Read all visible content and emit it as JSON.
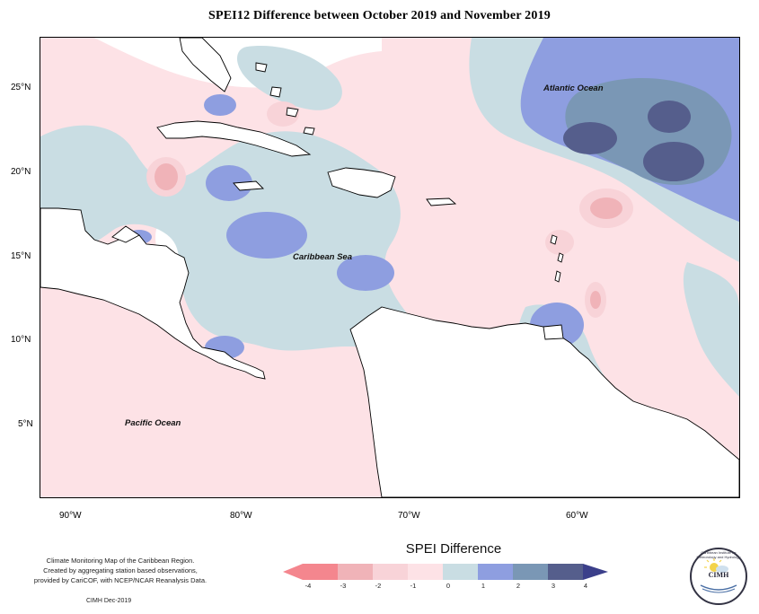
{
  "title": "SPEI12 Difference between October 2019 and November 2019",
  "lat_labels": [
    "25°N",
    "20°N",
    "15°N",
    "10°N",
    "5°N"
  ],
  "lon_labels": [
    "90°W",
    "80°W",
    "70°W",
    "60°W"
  ],
  "map_labels": {
    "atlantic": "Atlantic Ocean",
    "caribbean": "Caribbean Sea",
    "pacific": "Pacific Ocean"
  },
  "info_lines": [
    "Climate Monitoring Map of the Caribbean Region.",
    "Created by aggregating station based observations,",
    "provided by CariCOF, with NCEP/NCAR Reanalysis Data."
  ],
  "credit": "CIMH Dec-2019",
  "legend": {
    "title": "SPEI Difference",
    "ticks": [
      "-4",
      "-3",
      "-2",
      "-1",
      "0",
      "1",
      "2",
      "3",
      "4"
    ],
    "colors": [
      "#f4868e",
      "#f0b3b8",
      "#f8d3d8",
      "#fde2e6",
      "#ffffff",
      "#c9dde3",
      "#8e9ee0",
      "#7a97b5",
      "#555e8c",
      "#3b3f8a"
    ]
  },
  "logo": {
    "abbrev": "CIMH",
    "ring_text": "Caribbean Institute for Meteorology and Hydrology"
  },
  "palette": {
    "neg4": "#f4868e",
    "neg3": "#f0b3b8",
    "neg2": "#f8d3d8",
    "neg1": "#fde2e6",
    "zero": "#ffffff",
    "pos1": "#c9dde3",
    "pos2": "#8e9ee0",
    "pos3": "#7a97b5",
    "pos4": "#555e8c"
  }
}
